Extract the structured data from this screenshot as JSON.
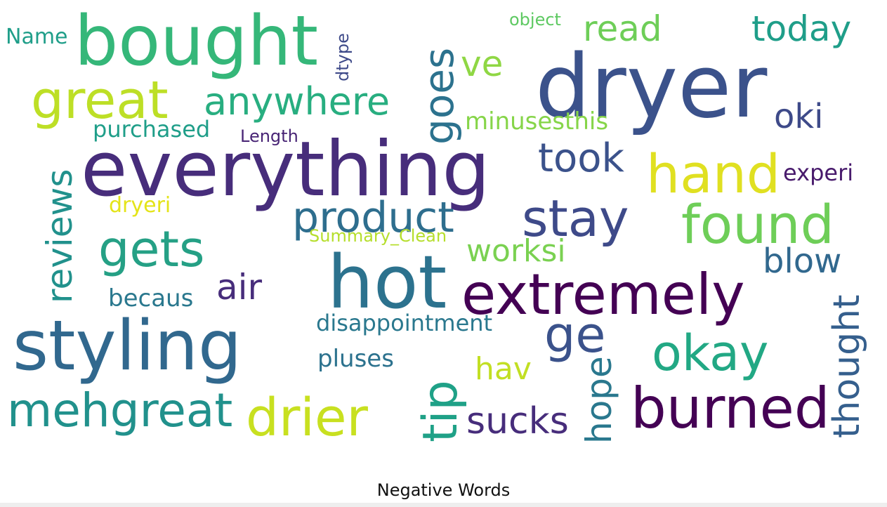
{
  "title": "Negative Words",
  "words": {
    "dryer": {
      "text": "dryer",
      "color": "#3b528b"
    },
    "bought": {
      "text": "bought",
      "color": "#35b779"
    },
    "everything": {
      "text": "everything",
      "color": "#472d7b"
    },
    "hot": {
      "text": "hot",
      "color": "#2c728e"
    },
    "styling": {
      "text": "styling",
      "color": "#31688e"
    },
    "extremely": {
      "text": "extremely",
      "color": "#440154"
    },
    "burned": {
      "text": "burned",
      "color": "#440154"
    },
    "great": {
      "text": "great",
      "color": "#bddf26"
    },
    "mehgreat": {
      "text": "mehgreat",
      "color": "#21918c"
    },
    "drier": {
      "text": "drier",
      "color": "#c8e020"
    },
    "found": {
      "text": "found",
      "color": "#6ece58"
    },
    "hand": {
      "text": "hand",
      "color": "#e0e021"
    },
    "stay": {
      "text": "stay",
      "color": "#3e4a89"
    },
    "gets": {
      "text": "gets",
      "color": "#25a085"
    },
    "okay": {
      "text": "okay",
      "color": "#22a884"
    },
    "product": {
      "text": "product",
      "color": "#2e6e8e"
    },
    "anywhere": {
      "text": "anywhere",
      "color": "#28ae80"
    },
    "goes": {
      "text": "goes",
      "color": "#2c728e"
    },
    "took": {
      "text": "took",
      "color": "#3b528b"
    },
    "reviews": {
      "text": "reviews",
      "color": "#21918c"
    },
    "ge": {
      "text": "ge",
      "color": "#3b528b"
    },
    "tip": {
      "text": "tip",
      "color": "#1fa187"
    },
    "sucks": {
      "text": "sucks",
      "color": "#472d7b"
    },
    "today": {
      "text": "today",
      "color": "#1f9e89"
    },
    "read": {
      "text": "read",
      "color": "#6ece58"
    },
    "ve": {
      "text": "ve",
      "color": "#8fd744"
    },
    "oki": {
      "text": "oki",
      "color": "#3e4a89"
    },
    "air": {
      "text": "air",
      "color": "#472d7b"
    },
    "worksi": {
      "text": "worksi",
      "color": "#7ad151"
    },
    "blow": {
      "text": "blow",
      "color": "#31688e"
    },
    "thought": {
      "text": "thought",
      "color": "#355f8d"
    },
    "hope": {
      "text": "hope",
      "color": "#2a788e"
    },
    "hav": {
      "text": "hav",
      "color": "#c2df23"
    },
    "experi": {
      "text": "experi",
      "color": "#481a6c"
    },
    "disappointment": {
      "text": "disappointment",
      "color": "#2a788e"
    },
    "pluses": {
      "text": "pluses",
      "color": "#2c728e"
    },
    "becaus": {
      "text": "becaus",
      "color": "#2a788e"
    },
    "purchased": {
      "text": "purchased",
      "color": "#1f9e89"
    },
    "minusesthis": {
      "text": "minusesthis",
      "color": "#86d549"
    },
    "name": {
      "text": "Name",
      "color": "#1f9e89"
    },
    "dryeri": {
      "text": "dryeri",
      "color": "#e4e419"
    },
    "length": {
      "text": "Length",
      "color": "#482475"
    },
    "summary_clean": {
      "text": "Summary_Clean",
      "color": "#b5de2b"
    },
    "object": {
      "text": "object",
      "color": "#5ec962"
    },
    "dtype": {
      "text": "dtype",
      "color": "#3e4a89"
    }
  }
}
